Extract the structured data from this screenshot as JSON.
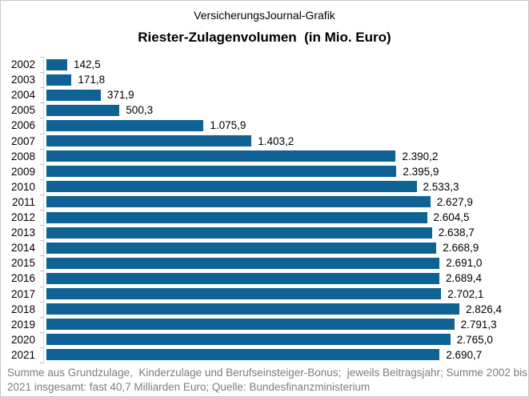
{
  "header": {
    "brand": "VersicherungsJournal-Grafik",
    "title": "Riester-Zulagenvolumen  (in Mio. Euro)"
  },
  "chart_data": {
    "type": "bar",
    "orientation": "horizontal",
    "title": "Riester-Zulagenvolumen (in Mio. Euro)",
    "unit": "Mio. Euro",
    "categories": [
      "2002",
      "2003",
      "2004",
      "2005",
      "2006",
      "2007",
      "2008",
      "2009",
      "2010",
      "2011",
      "2012",
      "2013",
      "2014",
      "2015",
      "2016",
      "2017",
      "2018",
      "2019",
      "2020",
      "2021"
    ],
    "values": [
      142.5,
      171.8,
      371.9,
      500.3,
      1075.9,
      1403.2,
      2390.2,
      2395.9,
      2533.3,
      2627.9,
      2604.5,
      2638.7,
      2668.9,
      2691.0,
      2689.4,
      2702.1,
      2826.4,
      2791.3,
      2765.0,
      2690.7
    ],
    "value_labels": [
      "142,5",
      "171,8",
      "371,9",
      "500,3",
      "1.075,9",
      "1.403,2",
      "2.390,2",
      "2.395,9",
      "2.533,3",
      "2.627,9",
      "2.604,5",
      "2.638,7",
      "2.668,9",
      "2.691,0",
      "2.689,4",
      "2.702,1",
      "2.826,4",
      "2.791,3",
      "2.765,0",
      "2.690,7"
    ],
    "xlabel": "",
    "ylabel": "",
    "xlim": [
      0,
      3000
    ],
    "grid": false,
    "legend": false,
    "bar_color": "#0F6294"
  },
  "colors": {
    "bar": "#0F6294",
    "axis": "#bdbdbd",
    "text": "#000000",
    "footer_text": "#7d7d7d",
    "frame_border": "#c8c8c8"
  },
  "footer": {
    "lines": [
      "Summe aus Grundzulage,  Kinderzulage und Berufseinsteiger-Bonus;  jeweils Beitragsjahr; Summe 2002 bis",
      "2021 insgesamt: fast 40,7 Milliarden Euro; Quelle: Bundesfinanzministerium"
    ]
  }
}
